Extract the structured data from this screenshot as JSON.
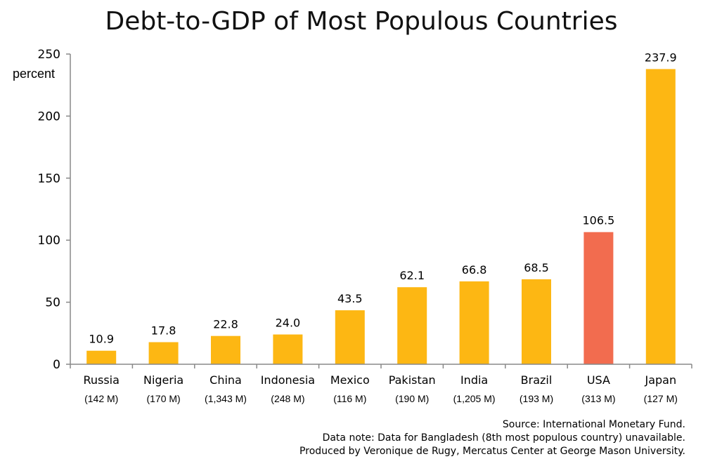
{
  "chart_data": {
    "type": "bar",
    "title": "Debt-to-GDP of Most Populous Countries",
    "ylabel": "percent",
    "xlabel": "",
    "ylim": [
      0,
      250
    ],
    "yticks": [
      "0",
      "50",
      "100",
      "150",
      "200",
      "250"
    ],
    "categories": [
      "Russia",
      "Nigeria",
      "China",
      "Indonesia",
      "Mexico",
      "Pakistan",
      "India",
      "Brazil",
      "USA",
      "Japan"
    ],
    "populations": [
      "(142 M)",
      "(170 M)",
      "(1,343 M)",
      "(248 M)",
      "(116 M)",
      "(190 M)",
      "(1,205 M)",
      "(193 M)",
      "(313 M)",
      "(127 M)"
    ],
    "values": [
      10.9,
      17.8,
      22.8,
      24.0,
      43.5,
      62.1,
      66.8,
      68.5,
      106.5,
      237.9
    ],
    "value_labels": [
      "10.9",
      "17.8",
      "22.8",
      "24.0",
      "43.5",
      "62.1",
      "66.8",
      "68.5",
      "106.5",
      "237.9"
    ],
    "colors": {
      "default": "#FDB713",
      "highlight": "#F26C4F",
      "highlight_category": "USA"
    },
    "grid": false,
    "legend": "none"
  },
  "footnotes": {
    "source": "Source: International Monetary Fund.",
    "data_note": "Data note: Data for Bangladesh (8th most populous country) unavailable.",
    "produced_by": "Produced by Veronique de Rugy, Mercatus Center at George Mason University."
  }
}
